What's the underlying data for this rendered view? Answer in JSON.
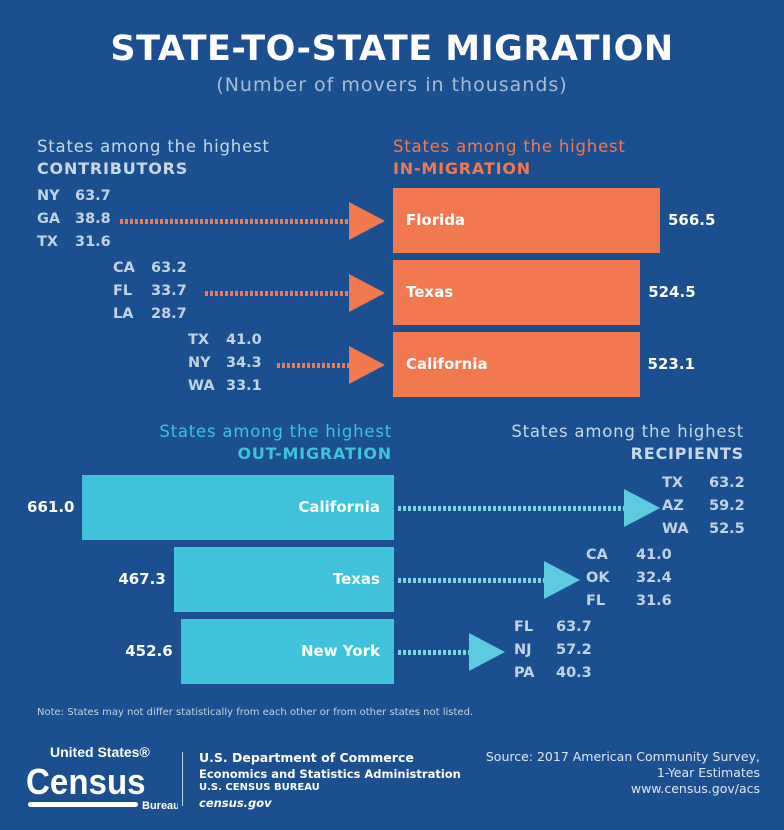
{
  "title": "STATE-TO-STATE MIGRATION",
  "subtitle": "(Number of movers in thousands)",
  "colors": {
    "background": "#1b4f8f",
    "in_migration": "#f2784f",
    "out_migration": "#3ec3db",
    "text": "#c3d3e4"
  },
  "chart_data": [
    {
      "type": "bar",
      "orientation": "horizontal",
      "header_line1": "States among the highest",
      "header_line2": "IN-MIGRATION",
      "categories": [
        "Florida",
        "Texas",
        "California"
      ],
      "values": [
        566.5,
        524.5,
        523.1
      ],
      "sub_header_line1": "States among the highest",
      "sub_header_line2": "CONTRIBUTORS",
      "contributors": [
        [
          {
            "state": "NY",
            "value": "63.7"
          },
          {
            "state": "GA",
            "value": "38.8"
          },
          {
            "state": "TX",
            "value": "31.6"
          }
        ],
        [
          {
            "state": "CA",
            "value": "63.2"
          },
          {
            "state": "FL",
            "value": "33.7"
          },
          {
            "state": "LA",
            "value": "28.7"
          }
        ],
        [
          {
            "state": "TX",
            "value": "41.0"
          },
          {
            "state": "NY",
            "value": "34.3"
          },
          {
            "state": "WA",
            "value": "33.1"
          }
        ]
      ]
    },
    {
      "type": "bar",
      "orientation": "horizontal",
      "header_line1": "States among the highest",
      "header_line2": "OUT-MIGRATION",
      "categories": [
        "California",
        "Texas",
        "New York"
      ],
      "values": [
        661.0,
        467.3,
        452.6
      ],
      "sub_header_line1": "States among the highest",
      "sub_header_line2": "RECIPIENTS",
      "recipients": [
        [
          {
            "state": "TX",
            "value": "63.2"
          },
          {
            "state": "AZ",
            "value": "59.2"
          },
          {
            "state": "WA",
            "value": "52.5"
          }
        ],
        [
          {
            "state": "CA",
            "value": "41.0"
          },
          {
            "state": "OK",
            "value": "32.4"
          },
          {
            "state": "FL",
            "value": "31.6"
          }
        ],
        [
          {
            "state": "FL",
            "value": "63.7"
          },
          {
            "state": "NJ",
            "value": "57.2"
          },
          {
            "state": "PA",
            "value": "40.3"
          }
        ]
      ]
    }
  ],
  "note": "Note: States may not differ statistically from each other or from other states not listed.",
  "footer": {
    "logo": {
      "line1": "United States®",
      "line2": "Census",
      "line3": "Bureau"
    },
    "agency": [
      "U.S. Department of Commerce",
      "Economics and Statistics Administration",
      "U.S. CENSUS BUREAU",
      "census.gov"
    ],
    "source": [
      "Source: 2017 American Community Survey,",
      "1-Year Estimates",
      "www.census.gov/acs"
    ]
  }
}
